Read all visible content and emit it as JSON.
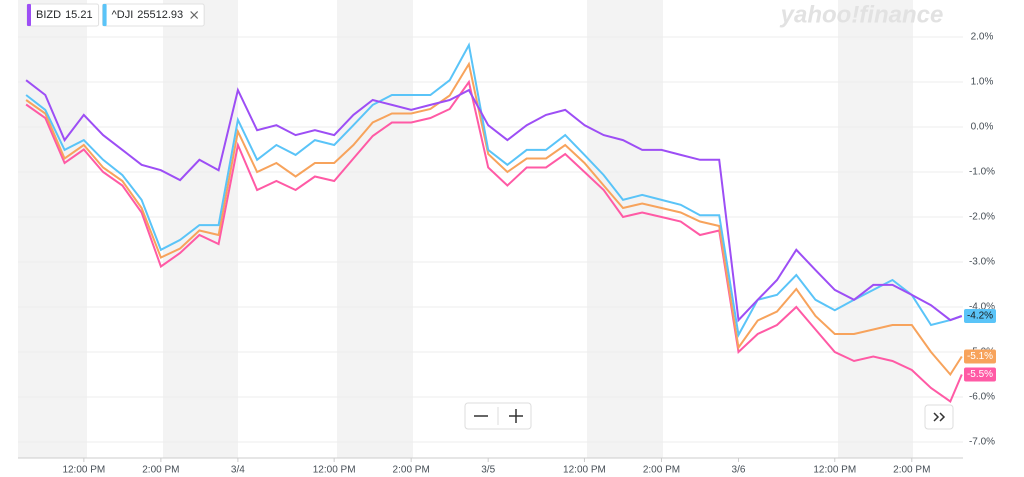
{
  "chart_data": {
    "type": "line",
    "watermark": "yahoo!finance",
    "x": [
      1,
      1.5,
      2,
      2.5,
      3,
      3.5,
      4,
      4.5,
      5,
      5.5,
      6,
      6.5,
      7,
      7.5,
      8,
      8.5,
      9,
      9.5,
      10,
      10.5,
      11,
      11.5,
      12,
      12.5,
      13,
      13.5,
      14,
      14.5,
      15,
      15.5,
      16,
      16.5,
      17,
      17.5,
      18,
      18.5,
      19,
      19.5,
      20,
      20.5,
      21,
      21.5,
      22,
      22.5,
      23,
      23.5,
      24,
      24.5,
      25,
      25.3
    ],
    "xlim": [
      0.79,
      25.33
    ],
    "xticks": [
      {
        "value": 2.5,
        "label": "12:00 PM"
      },
      {
        "value": 4.5,
        "label": "2:00 PM"
      },
      {
        "value": 6.5,
        "label": "3/4"
      },
      {
        "value": 9,
        "label": "12:00 PM"
      },
      {
        "value": 11,
        "label": "2:00 PM"
      },
      {
        "value": 13,
        "label": "3/5"
      },
      {
        "value": 15.5,
        "label": "12:00 PM"
      },
      {
        "value": 17.5,
        "label": "2:00 PM"
      },
      {
        "value": 19.5,
        "label": "3/6"
      },
      {
        "value": 22,
        "label": "12:00 PM"
      },
      {
        "value": 24,
        "label": "2:00 PM"
      }
    ],
    "ylim": [
      -7.3,
      2.8
    ],
    "yticks": [
      {
        "value": 2,
        "label": "2.0%"
      },
      {
        "value": 1,
        "label": "1.0%"
      },
      {
        "value": 0,
        "label": "0.0%"
      },
      {
        "value": -1,
        "label": "-1.0%"
      },
      {
        "value": -2,
        "label": "-2.0%"
      },
      {
        "value": -3,
        "label": "-3.0%"
      },
      {
        "value": -4,
        "label": "-4.0%"
      },
      {
        "value": -5,
        "label": "-5.0%"
      },
      {
        "value": -6,
        "label": "-6.0%"
      },
      {
        "value": -7,
        "label": "-7.0%"
      }
    ],
    "grid": true,
    "series": [
      {
        "name": "BIZD",
        "quote": 15.21,
        "color": "#9d4ef5",
        "values": [
          1.04,
          0.71,
          -0.29,
          0.27,
          -0.18,
          -0.51,
          -0.84,
          -0.96,
          -1.18,
          -0.73,
          -0.96,
          0.82,
          -0.07,
          0.04,
          -0.18,
          -0.07,
          -0.18,
          0.27,
          0.6,
          0.49,
          0.38,
          0.49,
          0.6,
          0.82,
          0.04,
          -0.29,
          0.04,
          0.27,
          0.38,
          0.04,
          -0.18,
          -0.29,
          -0.51,
          -0.51,
          -0.62,
          -0.73,
          -0.73,
          -4.29,
          -3.84,
          -3.4,
          -2.73,
          -3.18,
          -3.62,
          -3.84,
          -3.51,
          -3.51,
          -3.73,
          -3.96,
          -4.29,
          -4.2
        ]
      },
      {
        "name": "^DJI",
        "quote": 25512.93,
        "color": "#5ac4f8",
        "end_label": "-4.2%",
        "values": [
          0.71,
          0.38,
          -0.51,
          -0.29,
          -0.73,
          -1.07,
          -1.62,
          -2.73,
          -2.51,
          -2.18,
          -2.18,
          0.16,
          -0.73,
          -0.4,
          -0.62,
          -0.29,
          -0.4,
          0.04,
          0.49,
          0.71,
          0.71,
          0.71,
          1.04,
          1.82,
          -0.51,
          -0.84,
          -0.51,
          -0.51,
          -0.18,
          -0.62,
          -1.07,
          -1.62,
          -1.51,
          -1.62,
          -1.73,
          -1.96,
          -1.96,
          -4.62,
          -3.84,
          -3.73,
          -3.29,
          -3.84,
          -4.07,
          -3.84,
          -3.62,
          -3.4,
          -3.73,
          -4.4,
          -4.29,
          -4.2
        ]
      },
      {
        "color": "#f7a35c",
        "end_label": "-5.1%",
        "values": [
          0.6,
          0.3,
          -0.7,
          -0.4,
          -0.9,
          -1.2,
          -1.8,
          -2.9,
          -2.7,
          -2.3,
          -2.4,
          -0.1,
          -1.0,
          -0.8,
          -1.1,
          -0.8,
          -0.8,
          -0.4,
          0.1,
          0.3,
          0.3,
          0.4,
          0.7,
          1.4,
          -0.6,
          -1.0,
          -0.7,
          -0.7,
          -0.4,
          -0.8,
          -1.3,
          -1.8,
          -1.7,
          -1.8,
          -1.9,
          -2.1,
          -2.2,
          -4.9,
          -4.3,
          -4.1,
          -3.6,
          -4.2,
          -4.6,
          -4.6,
          -4.5,
          -4.4,
          -4.4,
          -5.0,
          -5.5,
          -5.1
        ]
      },
      {
        "color": "#ff5aa5",
        "end_label": "-5.5%",
        "values": [
          0.5,
          0.2,
          -0.8,
          -0.5,
          -1.0,
          -1.3,
          -1.9,
          -3.1,
          -2.8,
          -2.4,
          -2.6,
          -0.4,
          -1.4,
          -1.2,
          -1.4,
          -1.1,
          -1.2,
          -0.7,
          -0.2,
          0.1,
          0.1,
          0.2,
          0.4,
          1.0,
          -0.9,
          -1.3,
          -0.9,
          -0.9,
          -0.6,
          -1.0,
          -1.4,
          -2.0,
          -1.9,
          -2.0,
          -2.1,
          -2.4,
          -2.3,
          -5.0,
          -4.6,
          -4.4,
          -4.0,
          -4.5,
          -5.0,
          -5.2,
          -5.1,
          -5.2,
          -5.4,
          -5.8,
          -6.1,
          -5.5
        ]
      }
    ]
  }
}
